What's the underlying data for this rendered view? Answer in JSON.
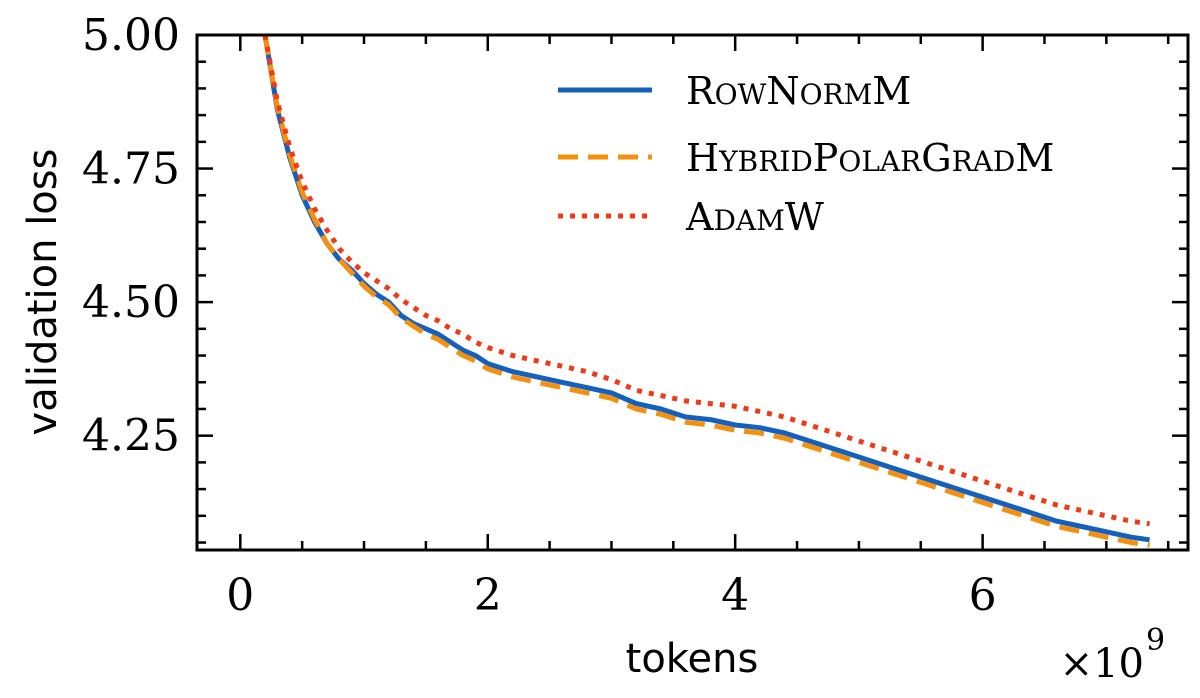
{
  "chart_data": {
    "type": "line",
    "xlabel": "tokens",
    "ylabel": "validation loss",
    "x_multiplier_label": "×10",
    "x_multiplier_exponent": "9",
    "xlim": [
      -0.35,
      7.66
    ],
    "ylim": [
      4.036,
      5.0
    ],
    "x_ticks": [
      0,
      2,
      4,
      6
    ],
    "x_tick_labels": [
      "0",
      "2",
      "4",
      "6"
    ],
    "y_ticks": [
      4.25,
      4.5,
      4.75,
      5.0
    ],
    "y_tick_labels": [
      "4.25",
      "4.50",
      "4.75",
      "5.00"
    ],
    "grid": false,
    "legend_position": "top-right",
    "series": [
      {
        "name": "RowNormM",
        "color": "#1560BD",
        "style": "solid",
        "x": [
          0.2,
          0.3,
          0.4,
          0.5,
          0.6,
          0.7,
          0.8,
          0.9,
          1.0,
          1.1,
          1.2,
          1.3,
          1.4,
          1.5,
          1.6,
          1.7,
          1.8,
          1.9,
          2.0,
          2.2,
          2.4,
          2.6,
          2.8,
          3.0,
          3.2,
          3.4,
          3.6,
          3.8,
          4.0,
          4.2,
          4.4,
          4.6,
          4.8,
          5.0,
          5.2,
          5.4,
          5.6,
          5.8,
          6.0,
          6.2,
          6.4,
          6.6,
          6.8,
          7.0,
          7.2,
          7.35
        ],
        "y": [
          5.0,
          4.86,
          4.77,
          4.7,
          4.65,
          4.61,
          4.58,
          4.56,
          4.535,
          4.515,
          4.5,
          4.475,
          4.46,
          4.45,
          4.44,
          4.425,
          4.41,
          4.4,
          4.385,
          4.37,
          4.36,
          4.35,
          4.34,
          4.33,
          4.31,
          4.3,
          4.285,
          4.28,
          4.27,
          4.265,
          4.255,
          4.24,
          4.225,
          4.21,
          4.195,
          4.18,
          4.165,
          4.15,
          4.135,
          4.12,
          4.105,
          4.09,
          4.08,
          4.07,
          4.06,
          4.055
        ]
      },
      {
        "name": "HybridPolarGradM",
        "color": "#F5900E",
        "style": "dashed",
        "x": [
          0.2,
          0.3,
          0.4,
          0.5,
          0.6,
          0.7,
          0.8,
          0.9,
          1.0,
          1.1,
          1.2,
          1.3,
          1.4,
          1.5,
          1.6,
          1.7,
          1.8,
          1.9,
          2.0,
          2.2,
          2.4,
          2.6,
          2.8,
          3.0,
          3.2,
          3.4,
          3.6,
          3.8,
          4.0,
          4.2,
          4.4,
          4.6,
          4.8,
          5.0,
          5.2,
          5.4,
          5.6,
          5.8,
          6.0,
          6.2,
          6.4,
          6.6,
          6.8,
          7.0,
          7.2,
          7.35
        ],
        "y": [
          5.0,
          4.865,
          4.775,
          4.705,
          4.655,
          4.61,
          4.58,
          4.555,
          4.53,
          4.51,
          4.495,
          4.47,
          4.455,
          4.44,
          4.43,
          4.415,
          4.4,
          4.39,
          4.375,
          4.36,
          4.35,
          4.34,
          4.33,
          4.32,
          4.3,
          4.29,
          4.275,
          4.27,
          4.26,
          4.255,
          4.245,
          4.23,
          4.215,
          4.2,
          4.185,
          4.17,
          4.155,
          4.14,
          4.125,
          4.11,
          4.095,
          4.08,
          4.07,
          4.06,
          4.05,
          4.045
        ]
      },
      {
        "name": "AdamW",
        "color": "#F03A17",
        "style": "dotted",
        "x": [
          0.2,
          0.3,
          0.4,
          0.5,
          0.6,
          0.7,
          0.8,
          0.9,
          1.0,
          1.1,
          1.2,
          1.3,
          1.4,
          1.5,
          1.6,
          1.7,
          1.8,
          1.9,
          2.0,
          2.2,
          2.4,
          2.6,
          2.8,
          3.0,
          3.2,
          3.4,
          3.6,
          3.8,
          4.0,
          4.2,
          4.4,
          4.6,
          4.8,
          5.0,
          5.2,
          5.4,
          5.6,
          5.8,
          6.0,
          6.2,
          6.4,
          6.6,
          6.8,
          7.0,
          7.2,
          7.35
        ],
        "y": [
          5.0,
          4.875,
          4.79,
          4.725,
          4.675,
          4.635,
          4.6,
          4.575,
          4.555,
          4.54,
          4.525,
          4.505,
          4.49,
          4.475,
          4.465,
          4.45,
          4.44,
          4.425,
          4.415,
          4.4,
          4.39,
          4.38,
          4.37,
          4.355,
          4.335,
          4.325,
          4.315,
          4.31,
          4.305,
          4.295,
          4.285,
          4.27,
          4.255,
          4.24,
          4.225,
          4.21,
          4.195,
          4.18,
          4.165,
          4.15,
          4.135,
          4.12,
          4.11,
          4.1,
          4.09,
          4.085
        ]
      }
    ]
  }
}
